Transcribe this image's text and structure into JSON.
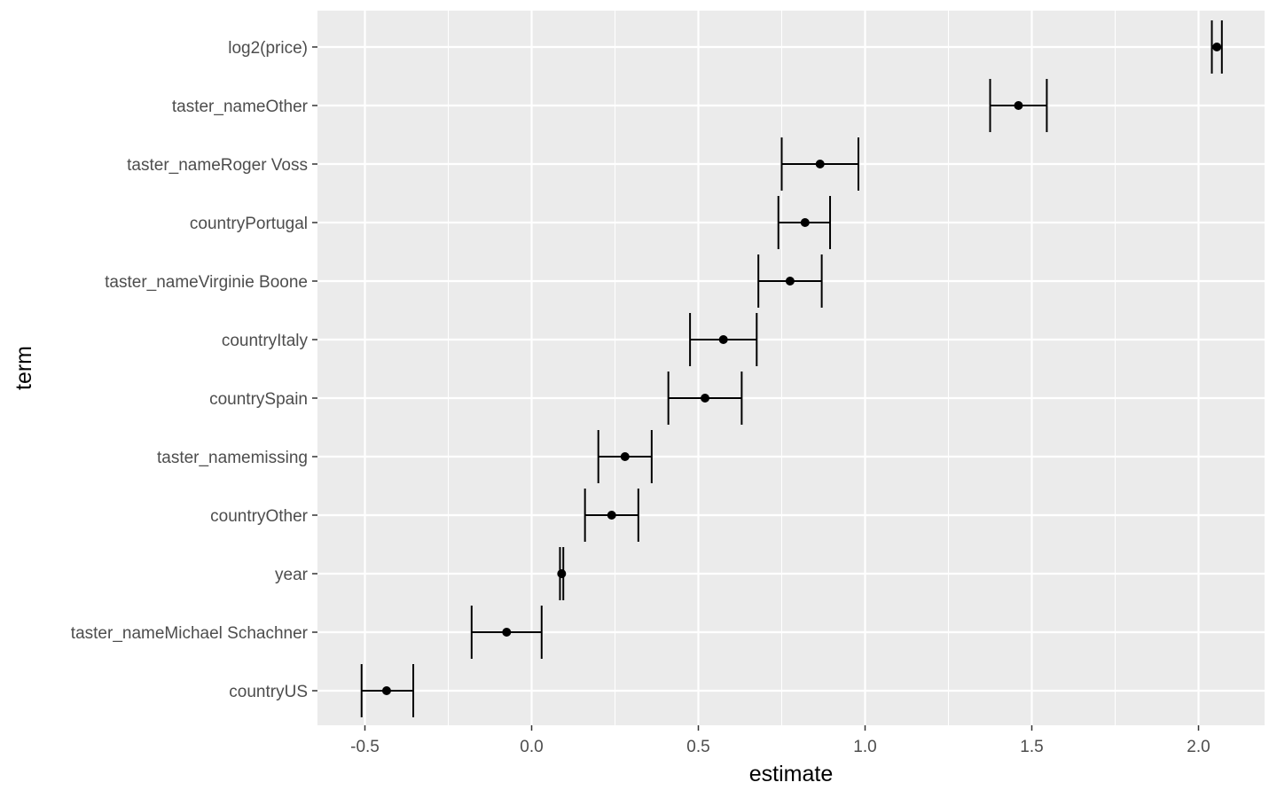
{
  "chart_data": {
    "type": "scatter",
    "subtype": "coefficient-plot-with-error-bars",
    "title": "",
    "xlabel": "estimate",
    "ylabel": "term",
    "xlim": [
      -0.63,
      2.2
    ],
    "x_ticks": [
      -0.5,
      0.0,
      0.5,
      1.0,
      1.5,
      2.0
    ],
    "x_tick_labels": [
      "-0.5",
      "0.0",
      "0.5",
      "1.0",
      "1.5",
      "2.0"
    ],
    "grid": true,
    "legend": "none",
    "colors": {
      "panel": "#ebebeb",
      "grid": "#ffffff",
      "mark": "#000000"
    },
    "points": [
      {
        "term": "log2(price)",
        "estimate": 2.055,
        "low": 2.04,
        "high": 2.07
      },
      {
        "term": "taster_nameOther",
        "estimate": 1.46,
        "low": 1.375,
        "high": 1.545
      },
      {
        "term": "taster_nameRoger Voss",
        "estimate": 0.865,
        "low": 0.75,
        "high": 0.98
      },
      {
        "term": "countryPortugal",
        "estimate": 0.82,
        "low": 0.74,
        "high": 0.895
      },
      {
        "term": "taster_nameVirginie Boone",
        "estimate": 0.775,
        "low": 0.68,
        "high": 0.87
      },
      {
        "term": "countryItaly",
        "estimate": 0.575,
        "low": 0.475,
        "high": 0.675
      },
      {
        "term": "countrySpain",
        "estimate": 0.52,
        "low": 0.41,
        "high": 0.63
      },
      {
        "term": "taster_namemissing",
        "estimate": 0.28,
        "low": 0.2,
        "high": 0.36
      },
      {
        "term": "countryOther",
        "estimate": 0.24,
        "low": 0.16,
        "high": 0.32
      },
      {
        "term": "year",
        "estimate": 0.09,
        "low": 0.085,
        "high": 0.095
      },
      {
        "term": "taster_nameMichael Schachner",
        "estimate": -0.075,
        "low": -0.18,
        "high": 0.03
      },
      {
        "term": "countryUS",
        "estimate": -0.435,
        "low": -0.51,
        "high": -0.355
      }
    ]
  }
}
